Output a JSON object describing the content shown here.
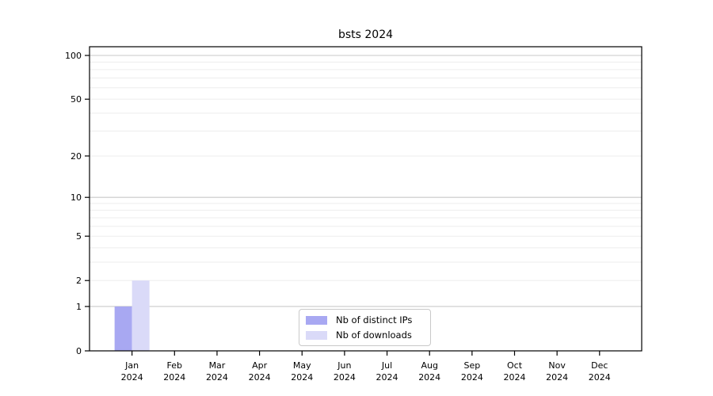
{
  "chart_data": {
    "type": "bar",
    "title": "bsts 2024",
    "categories": [
      "Jan",
      "Feb",
      "Mar",
      "Apr",
      "May",
      "Jun",
      "Jul",
      "Aug",
      "Sep",
      "Oct",
      "Nov",
      "Dec"
    ],
    "x_tick_sub_label": "2024",
    "series": [
      {
        "name": "Nb of distinct IPs",
        "color": "#a8a8f2",
        "values": [
          1,
          0,
          0,
          0,
          0,
          0,
          0,
          0,
          0,
          0,
          0,
          0
        ]
      },
      {
        "name": "Nb of downloads",
        "color": "#dadaf8",
        "values": [
          2,
          0,
          0,
          0,
          0,
          0,
          0,
          0,
          0,
          0,
          0,
          0
        ]
      }
    ],
    "y_axis": {
      "scale": "log1p",
      "ticks": [
        0,
        1,
        2,
        5,
        10,
        20,
        50,
        100
      ],
      "major_gridlines": [
        1,
        10,
        100
      ],
      "minor_gridlines": [
        2,
        3,
        4,
        5,
        6,
        7,
        8,
        9,
        20,
        30,
        40,
        50,
        60,
        70,
        80,
        90
      ],
      "ylim": [
        0,
        115
      ]
    },
    "grid": "horizontal-only",
    "legend_position": "inside-bottom-center",
    "colors": {
      "axis": "#000000",
      "grid_major": "#c9c9c9",
      "grid_minor": "#ededed",
      "tick_label": "#000000",
      "background": "#ffffff"
    }
  }
}
